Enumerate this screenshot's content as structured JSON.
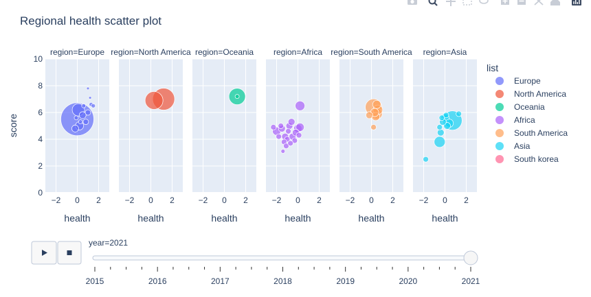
{
  "chart_data": {
    "type": "scatter",
    "title": "Regional health scatter plot",
    "xlabel": "health",
    "ylabel": "score",
    "xlim": [
      -3,
      3
    ],
    "ylim": [
      0,
      10
    ],
    "x_ticks": [
      "−2",
      "0",
      "2"
    ],
    "y_ticks": [
      "0",
      "2",
      "4",
      "6",
      "8",
      "10"
    ],
    "facets": [
      {
        "label": "region=Europe",
        "color": "#636efa",
        "points": [
          [
            0,
            5.5,
            24
          ],
          [
            0.1,
            6.2,
            9
          ],
          [
            0.2,
            5.0,
            6
          ],
          [
            -0.2,
            4.8,
            5
          ],
          [
            0.5,
            5.8,
            5
          ],
          [
            0.8,
            5.3,
            4
          ],
          [
            1.0,
            6.0,
            4
          ],
          [
            1.3,
            6.6,
            3
          ],
          [
            1.5,
            6.5,
            3
          ],
          [
            1.2,
            7.1,
            2
          ],
          [
            1.0,
            7.8,
            2
          ],
          [
            0.3,
            5.3,
            3
          ],
          [
            -0.1,
            5.6,
            3
          ],
          [
            0.6,
            6.5,
            3
          ]
        ]
      },
      {
        "label": "region=North America",
        "color": "#ef553b",
        "points": [
          [
            0.3,
            6.9,
            13
          ],
          [
            1.2,
            7.0,
            16
          ]
        ]
      },
      {
        "label": "region=Oceania",
        "color": "#00cc96",
        "points": [
          [
            1.2,
            7.2,
            12
          ],
          [
            1.2,
            7.2,
            3
          ]
        ]
      },
      {
        "label": "region=Africa",
        "color": "#ab63fa",
        "points": [
          [
            0.2,
            6.5,
            7
          ],
          [
            -2.0,
            4.6,
            6
          ],
          [
            -1.5,
            4.8,
            5
          ],
          [
            -1.2,
            4.2,
            5
          ],
          [
            -1.0,
            4.0,
            4
          ],
          [
            -0.5,
            4.2,
            5
          ],
          [
            -0.2,
            4.5,
            5
          ],
          [
            0.0,
            4.8,
            6
          ],
          [
            0.2,
            4.9,
            6
          ],
          [
            -0.8,
            5.0,
            5
          ],
          [
            -1.8,
            4.2,
            4
          ],
          [
            -1.3,
            3.8,
            4
          ],
          [
            -1.1,
            3.5,
            4
          ],
          [
            -1.4,
            3.1,
            3
          ],
          [
            -0.6,
            5.3,
            5
          ],
          [
            -0.9,
            4.6,
            4
          ],
          [
            -1.6,
            5.0,
            4
          ],
          [
            -0.3,
            3.9,
            4
          ],
          [
            0.1,
            4.3,
            4
          ],
          [
            -0.7,
            3.7,
            4
          ],
          [
            -2.3,
            4.9,
            4
          ]
        ]
      },
      {
        "label": "region=South America",
        "color": "#ffa15a",
        "points": [
          [
            0.2,
            6.4,
            12
          ],
          [
            0.5,
            5.9,
            8
          ],
          [
            0.4,
            5.7,
            6
          ],
          [
            -0.2,
            5.8,
            5
          ],
          [
            0.6,
            6.2,
            7
          ],
          [
            0.3,
            6.0,
            6
          ],
          [
            0.2,
            4.9,
            4
          ],
          [
            0.5,
            6.6,
            6
          ]
        ]
      },
      {
        "label": "region=Asia",
        "color": "#19d3f3",
        "points": [
          [
            0.7,
            5.4,
            14
          ],
          [
            -0.5,
            3.8,
            8
          ],
          [
            -1.8,
            2.5,
            4
          ],
          [
            0.0,
            5.6,
            6
          ],
          [
            -0.5,
            4.9,
            4
          ],
          [
            -0.4,
            4.5,
            5
          ],
          [
            0.2,
            5.0,
            5
          ],
          [
            -0.2,
            5.3,
            5
          ],
          [
            0.4,
            5.2,
            6
          ],
          [
            1.3,
            5.9,
            4
          ],
          [
            0.1,
            5.8,
            4
          ],
          [
            -0.3,
            5.6,
            4
          ]
        ]
      }
    ],
    "legend": {
      "title": "list",
      "items": [
        {
          "name": "Europe",
          "color": "#636efa"
        },
        {
          "name": "North America",
          "color": "#ef553b"
        },
        {
          "name": "Oceania",
          "color": "#00cc96"
        },
        {
          "name": "Africa",
          "color": "#ab63fa"
        },
        {
          "name": "South America",
          "color": "#ffa15a"
        },
        {
          "name": "Asia",
          "color": "#19d3f3"
        },
        {
          "name": "South korea",
          "color": "#ff6692"
        }
      ]
    },
    "slider": {
      "current_label": "year=2021",
      "years": [
        "2015",
        "2016",
        "2017",
        "2018",
        "2019",
        "2020",
        "2021"
      ],
      "current_index": 6
    }
  },
  "controls": {
    "play_icon": "play-icon",
    "stop_icon": "stop-icon"
  },
  "modebar": [
    "camera-icon",
    "zoom-icon",
    "pan-icon",
    "box-select-icon",
    "lasso-icon",
    "zoom-in-icon",
    "zoom-out-icon",
    "autoscale-icon",
    "home-icon",
    "plotly-logo-icon"
  ]
}
